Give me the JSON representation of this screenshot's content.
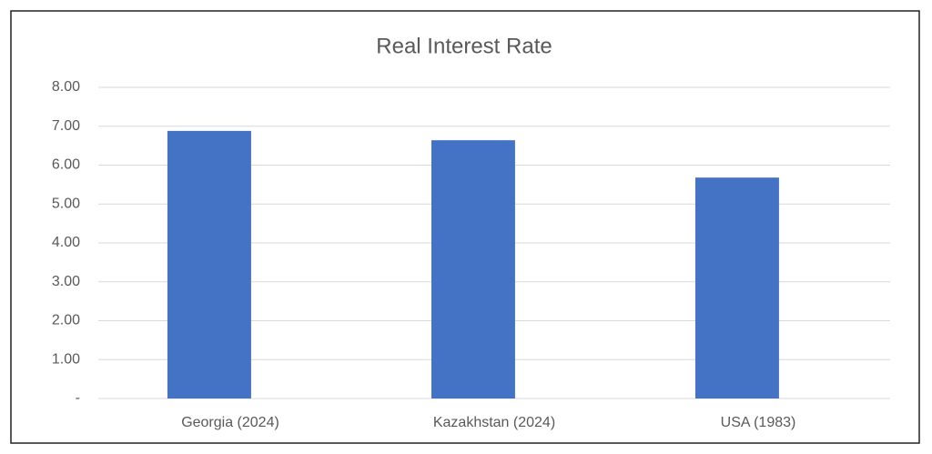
{
  "chart_data": {
    "type": "bar",
    "title": "Real Interest Rate",
    "categories": [
      "Georgia (2024)",
      "Kazakhstan (2024)",
      "USA (1983)"
    ],
    "values": [
      6.88,
      6.64,
      5.68
    ],
    "color": "#4472c4",
    "ylim": [
      0,
      8
    ],
    "yticks": [
      {
        "value": 0,
        "label": "-"
      },
      {
        "value": 1,
        "label": "1.00"
      },
      {
        "value": 2,
        "label": "2.00"
      },
      {
        "value": 3,
        "label": "3.00"
      },
      {
        "value": 4,
        "label": "4.00"
      },
      {
        "value": 5,
        "label": "5.00"
      },
      {
        "value": 6,
        "label": "6.00"
      },
      {
        "value": 7,
        "label": "7.00"
      },
      {
        "value": 8,
        "label": "8.00"
      }
    ],
    "grid": true
  }
}
